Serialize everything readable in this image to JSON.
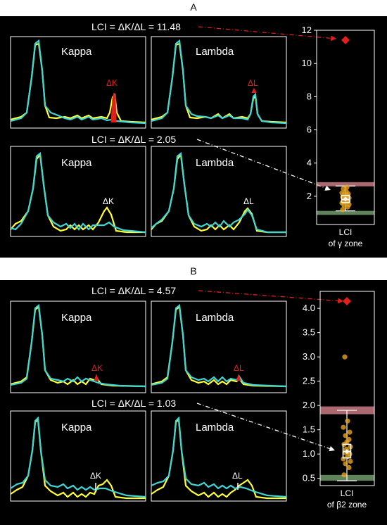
{
  "panels": [
    {
      "label": "A",
      "lci_top": "LCI = ΔK/ΔL = 11.48",
      "lci_bottom": "LCI = ΔK/ΔL = 2.05",
      "chart_titles": [
        "Kappa",
        "Lambda",
        "Kappa",
        "Lambda"
      ],
      "peak_labels": [
        "ΔK",
        "ΔL",
        "ΔK",
        "ΔL"
      ],
      "x_label_line1": "LCI",
      "x_label_line2": "of γ zone"
    },
    {
      "label": "B",
      "lci_top": "LCI = ΔK/ΔL = 4.57",
      "lci_bottom": "LCI = ΔK/ΔL = 1.03",
      "chart_titles": [
        "Kappa",
        "Lambda",
        "Kappa",
        "Lambda"
      ],
      "peak_labels": [
        "ΔK",
        "ΔL",
        "ΔK",
        "ΔL"
      ],
      "x_label_line1": "LCI",
      "x_label_line2": "of β2 zone"
    }
  ],
  "colors": {
    "background": "#000000",
    "cyan_trace": "#3fd6d6",
    "yellow_trace": "#ffff33",
    "red_highlight": "#e0201b",
    "orange_points": "#e6a21f",
    "upper_band": "#e38c96",
    "lower_band": "#7fb07a"
  },
  "chart_data": [
    {
      "type": "scatter",
      "panel": "A",
      "ylabel": "",
      "xlabel": "LCI of γ zone",
      "ylim": [
        0.3,
        12
      ],
      "yticks": [
        2,
        4,
        6,
        8,
        10,
        12
      ],
      "highlight_red": 11.48,
      "highlight_white": 2.05,
      "points": [
        1.2,
        1.35,
        1.45,
        1.5,
        1.6,
        1.65,
        1.7,
        1.75,
        1.8,
        1.85,
        1.9,
        1.95,
        2.0,
        2.05,
        2.1,
        2.15,
        2.2,
        2.3,
        2.45,
        2.55
      ],
      "box": {
        "q1": 1.62,
        "median": 1.8,
        "q3": 2.05,
        "whisker_low": 1.12,
        "whisker_high": 2.62,
        "mean": 1.83
      },
      "bands": [
        {
          "name": "upper",
          "from": 2.6,
          "to": 2.85
        },
        {
          "name": "lower",
          "from": 0.88,
          "to": 1.12
        }
      ]
    },
    {
      "type": "scatter",
      "panel": "B",
      "ylabel": "",
      "xlabel": "LCI of β2 zone",
      "ylim": [
        0.35,
        4.35
      ],
      "yticks": [
        0.5,
        1.0,
        1.5,
        2.0,
        2.5,
        3.0,
        3.5,
        4.0
      ],
      "highlight_red": 4.57,
      "highlight_white": 1.03,
      "points": [
        0.57,
        0.72,
        0.8,
        0.85,
        0.9,
        0.95,
        1.0,
        1.03,
        1.05,
        1.1,
        1.15,
        1.2,
        1.25,
        1.3,
        1.38,
        1.45,
        1.55,
        1.68,
        3.0
      ],
      "box": {
        "q1": 0.92,
        "median": 1.05,
        "q3": 1.2,
        "whisker_low": 0.45,
        "whisker_high": 1.9,
        "mean": 1.05
      },
      "bands": [
        {
          "name": "upper",
          "from": 1.82,
          "to": 1.98
        },
        {
          "name": "lower",
          "from": 0.45,
          "to": 0.57
        }
      ]
    }
  ]
}
